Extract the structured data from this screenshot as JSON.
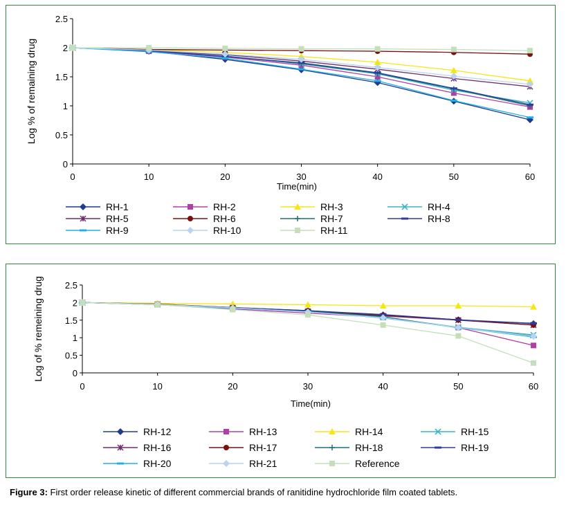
{
  "caption": {
    "label": "Figure 3:",
    "text": " First order release kinetic of different commercial brands of ranitidine hydrochloride film coated tablets."
  },
  "chart_data": [
    {
      "type": "line",
      "xlabel": "Time(min)",
      "ylabel": "Log % of remaining drug",
      "x": [
        0,
        10,
        20,
        30,
        40,
        50,
        60
      ],
      "xlim": [
        0,
        60
      ],
      "ylim": [
        0,
        2.5
      ],
      "xticks": [
        "0",
        "10",
        "20",
        "30",
        "40",
        "50",
        "60"
      ],
      "yticks": [
        "0",
        "0.5",
        "1",
        "1.5",
        "2",
        "2.5"
      ],
      "grid": false,
      "legend_position": "bottom",
      "series": [
        {
          "name": "RH-1",
          "color": "#1f3b8c",
          "marker": "diamond",
          "values": [
            2.0,
            1.94,
            1.8,
            1.62,
            1.4,
            1.08,
            0.76
          ]
        },
        {
          "name": "RH-2",
          "color": "#b13ea5",
          "marker": "square",
          "values": [
            2.0,
            1.94,
            1.84,
            1.7,
            1.5,
            1.22,
            0.98
          ]
        },
        {
          "name": "RH-3",
          "color": "#f5e616",
          "marker": "triangle",
          "values": [
            2.0,
            1.97,
            1.92,
            1.85,
            1.75,
            1.61,
            1.43
          ]
        },
        {
          "name": "RH-4",
          "color": "#3bb4c8",
          "marker": "x",
          "values": [
            2.0,
            1.95,
            1.86,
            1.72,
            1.55,
            1.27,
            1.05
          ]
        },
        {
          "name": "RH-5",
          "color": "#6d2c6e",
          "marker": "star",
          "values": [
            2.0,
            1.95,
            1.88,
            1.77,
            1.63,
            1.47,
            1.33
          ]
        },
        {
          "name": "RH-6",
          "color": "#7a1010",
          "marker": "circle",
          "values": [
            2.0,
            1.97,
            1.96,
            1.95,
            1.94,
            1.92,
            1.89
          ]
        },
        {
          "name": "RH-7",
          "color": "#1f6f7a",
          "marker": "plus",
          "values": [
            2.0,
            1.95,
            1.85,
            1.73,
            1.56,
            1.29,
            1.0
          ]
        },
        {
          "name": "RH-8",
          "color": "#2a3f9d",
          "marker": "dash",
          "values": [
            2.0,
            1.95,
            1.85,
            1.74,
            1.57,
            1.3,
            1.02
          ]
        },
        {
          "name": "RH-9",
          "color": "#1eb0e6",
          "marker": "dash",
          "values": [
            2.0,
            1.93,
            1.82,
            1.63,
            1.43,
            1.09,
            0.8
          ]
        },
        {
          "name": "RH-10",
          "color": "#b8d4ee",
          "marker": "diamond",
          "values": [
            2.0,
            1.96,
            1.89,
            1.8,
            1.66,
            1.51,
            1.37
          ]
        },
        {
          "name": "RH-11",
          "color": "#c4dfb9",
          "marker": "square",
          "values": [
            2.0,
            2.0,
            1.99,
            1.98,
            1.98,
            1.97,
            1.95
          ]
        }
      ]
    },
    {
      "type": "line",
      "xlabel": "Time(min)",
      "ylabel": "Log of % remeining drug",
      "x": [
        0,
        10,
        20,
        30,
        40,
        50,
        60
      ],
      "xlim": [
        0,
        60
      ],
      "ylim": [
        0,
        2.5
      ],
      "xticks": [
        "0",
        "10",
        "20",
        "30",
        "40",
        "50",
        "60"
      ],
      "yticks": [
        "0",
        "0.5",
        "1",
        "1.5",
        "2",
        "2.5"
      ],
      "grid": false,
      "legend_position": "bottom",
      "series": [
        {
          "name": "RH-12",
          "color": "#1f3b8c",
          "marker": "diamond",
          "values": [
            2.0,
            1.95,
            1.84,
            1.76,
            1.65,
            1.51,
            1.4
          ]
        },
        {
          "name": "RH-13",
          "color": "#b13ea5",
          "marker": "square",
          "values": [
            2.0,
            1.94,
            1.82,
            1.7,
            1.58,
            1.29,
            0.78
          ]
        },
        {
          "name": "RH-14",
          "color": "#f5e616",
          "marker": "triangle",
          "values": [
            2.0,
            1.98,
            1.96,
            1.94,
            1.91,
            1.91,
            1.88
          ]
        },
        {
          "name": "RH-15",
          "color": "#3bb4c8",
          "marker": "x",
          "values": [
            2.0,
            1.94,
            1.85,
            1.74,
            1.58,
            1.3,
            1.08
          ]
        },
        {
          "name": "RH-16",
          "color": "#6d2c6e",
          "marker": "star",
          "values": [
            2.0,
            1.95,
            1.85,
            1.75,
            1.62,
            1.5,
            1.36
          ]
        },
        {
          "name": "RH-17",
          "color": "#7a1010",
          "marker": "circle",
          "values": [
            2.0,
            1.96,
            1.86,
            1.77,
            1.64,
            1.51,
            1.36
          ]
        },
        {
          "name": "RH-18",
          "color": "#1f6f7a",
          "marker": "plus",
          "values": [
            2.0,
            1.95,
            1.85,
            1.75,
            1.6,
            1.28,
            1.05
          ]
        },
        {
          "name": "RH-19",
          "color": "#2a3f9d",
          "marker": "dash",
          "values": [
            2.0,
            1.95,
            1.86,
            1.77,
            1.66,
            1.51,
            1.41
          ]
        },
        {
          "name": "RH-20",
          "color": "#1eb0e6",
          "marker": "dash",
          "values": [
            2.0,
            1.94,
            1.84,
            1.74,
            1.56,
            1.29,
            1.02
          ]
        },
        {
          "name": "RH-21",
          "color": "#b8d4ee",
          "marker": "diamond",
          "values": [
            2.0,
            1.95,
            1.85,
            1.73,
            1.57,
            1.29,
            1.04
          ]
        },
        {
          "name": "Reference",
          "color": "#c4dfb9",
          "marker": "square",
          "values": [
            2.0,
            1.94,
            1.8,
            1.65,
            1.36,
            1.05,
            0.28
          ]
        }
      ]
    }
  ]
}
